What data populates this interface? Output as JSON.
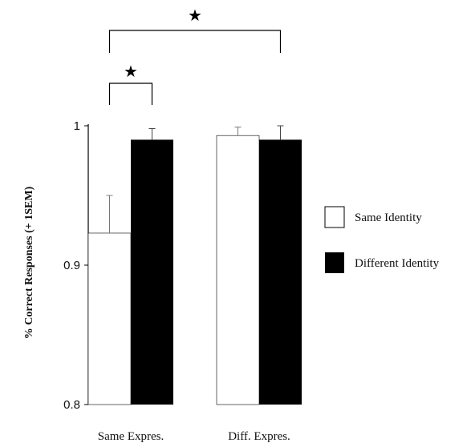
{
  "chart_data": {
    "type": "bar",
    "title": "",
    "xlabel": "",
    "ylabel": "% Correct Responses (+ 1SEM)",
    "ylim": [
      0.8,
      1.0
    ],
    "yticks": [
      0.8,
      0.9,
      1.0
    ],
    "ytick_labels": [
      "0.8",
      "0.9",
      "1"
    ],
    "categories": [
      "Same Expres.",
      "Diff. Expres."
    ],
    "series": [
      {
        "name": "Same Identity",
        "color": "#ffffff",
        "values": [
          0.923,
          0.993
        ],
        "sem": [
          0.027,
          0.006
        ]
      },
      {
        "name": "Different Identity",
        "color": "#000000",
        "values": [
          0.99,
          0.99
        ],
        "sem": [
          0.008,
          0.01
        ]
      }
    ],
    "legend_position": "right",
    "grid": false,
    "significance": [
      {
        "label": "★",
        "between": "Same Expres. (Same Identity vs Different Identity)"
      },
      {
        "label": "★",
        "between": "Same Expres. Same Identity vs Diff. Expres. Different Identity"
      }
    ]
  }
}
